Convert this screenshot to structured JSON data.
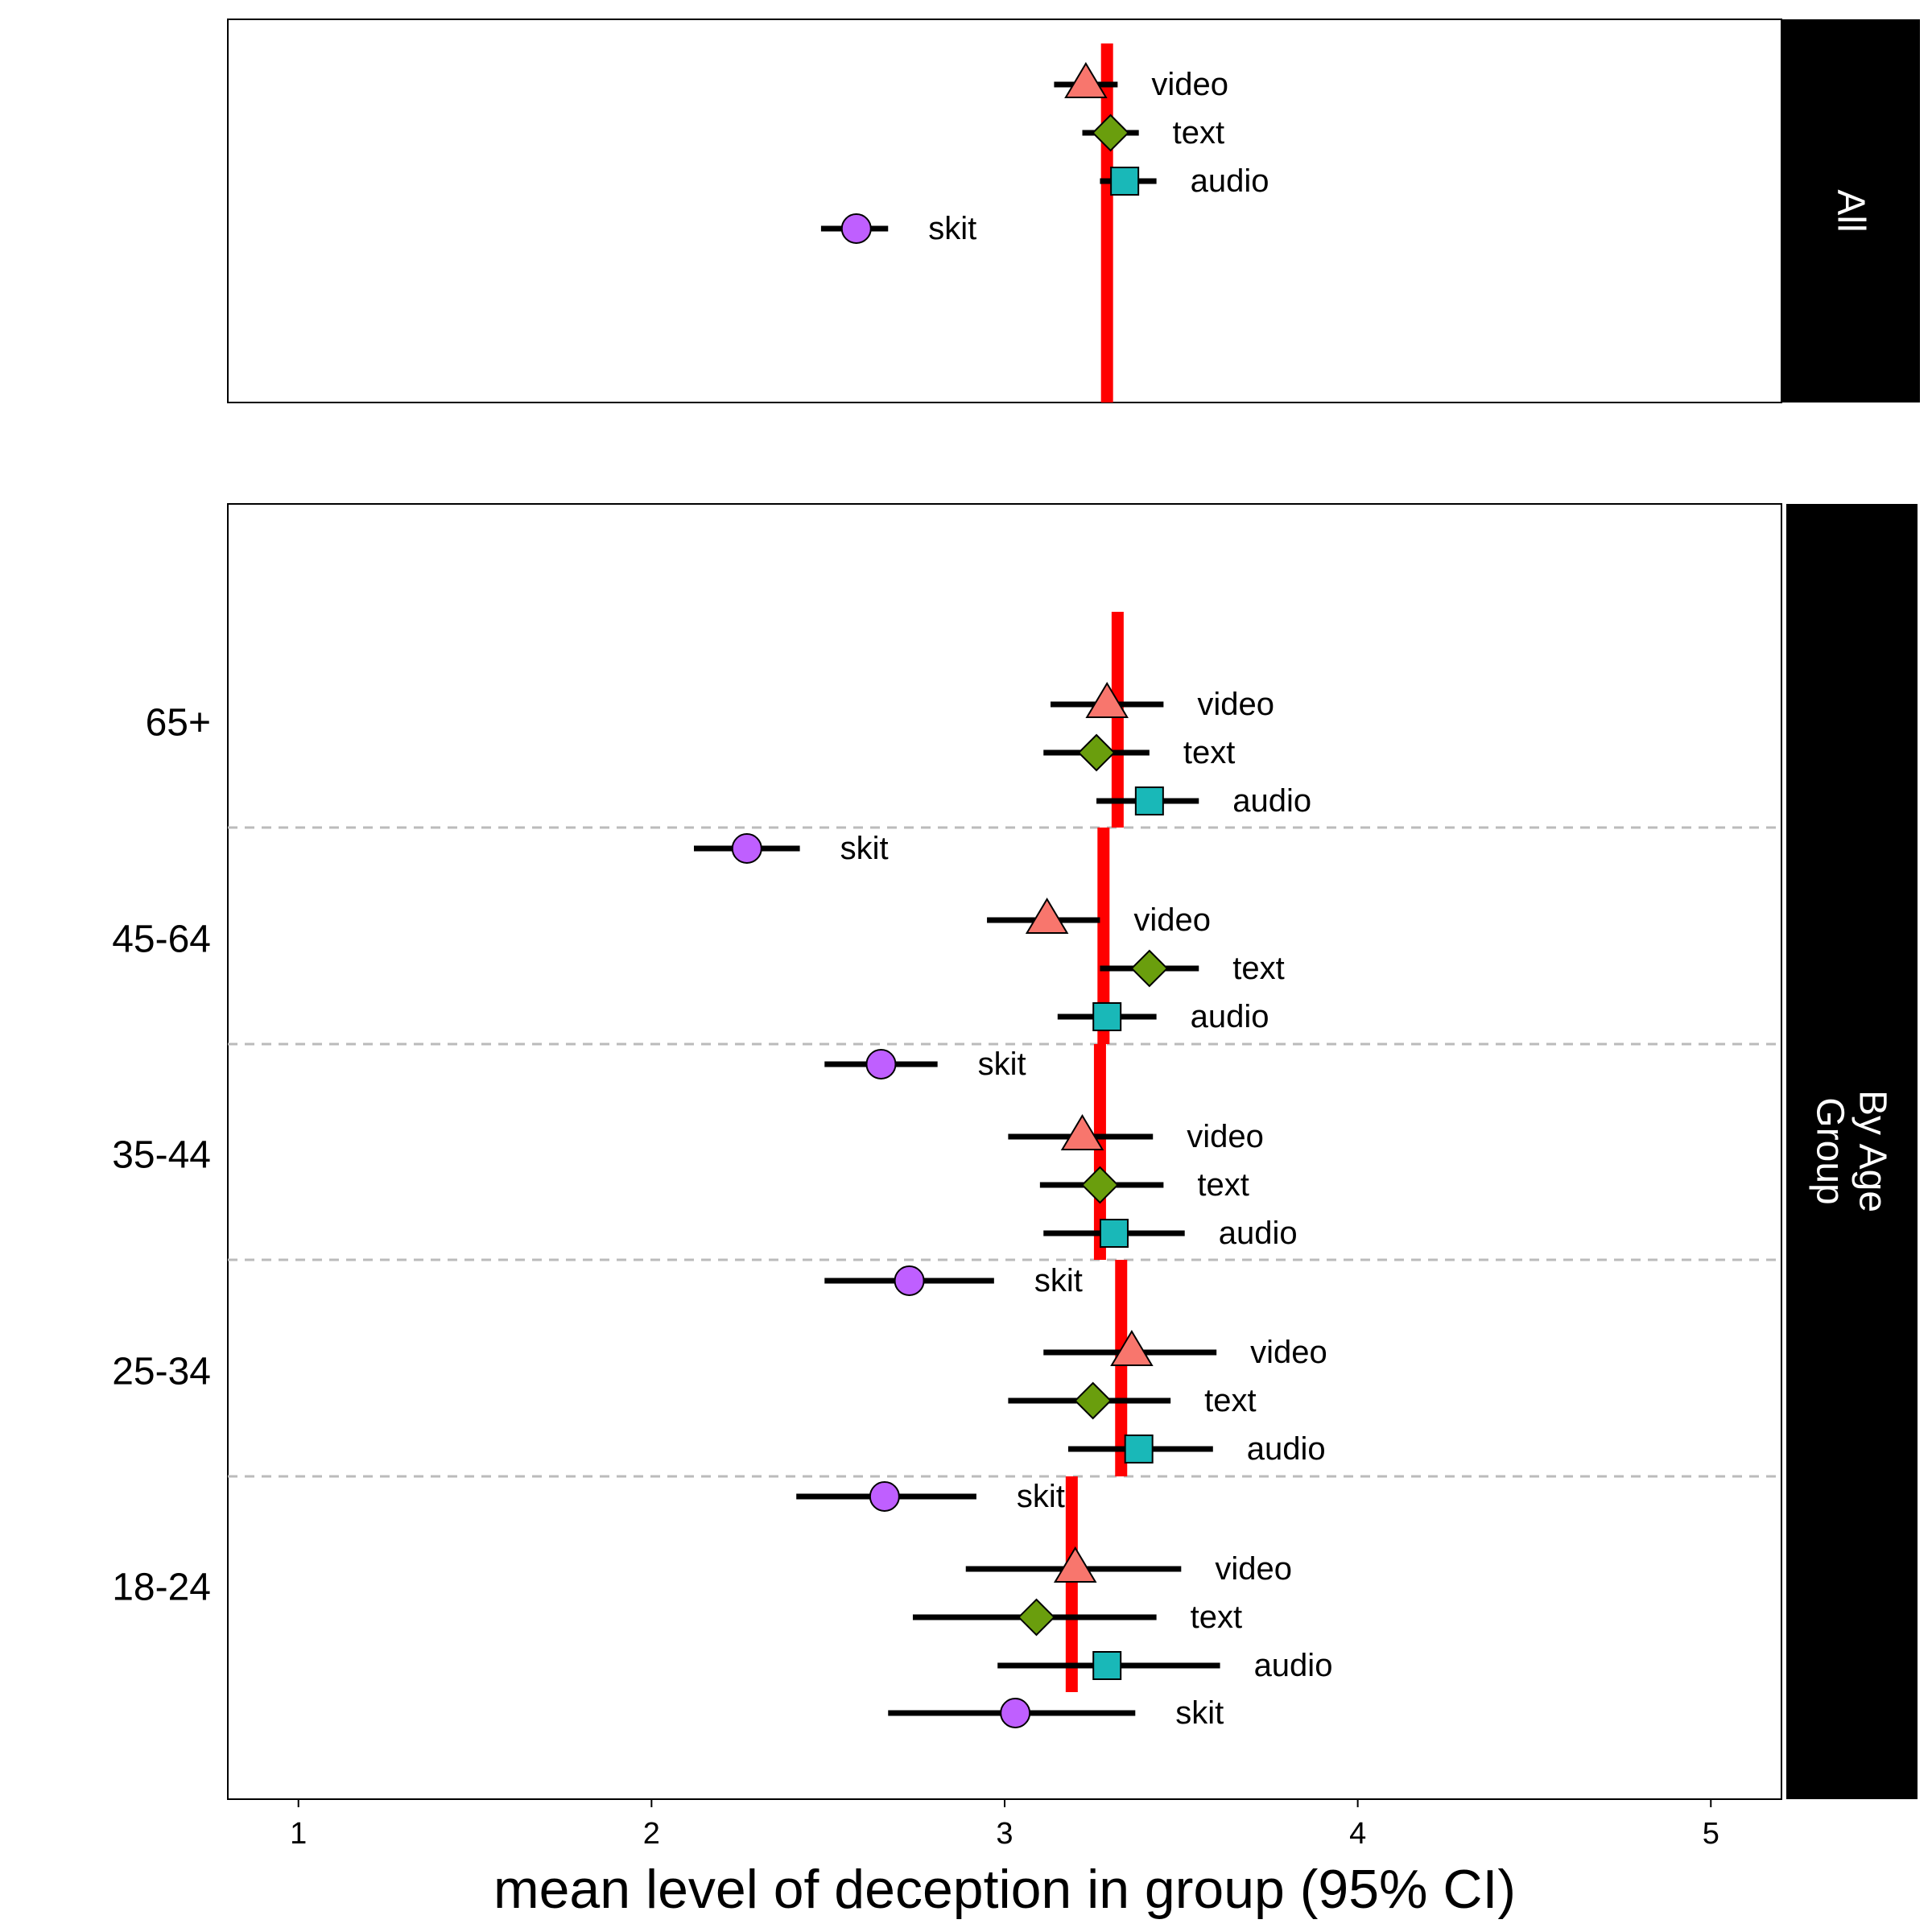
{
  "chart_data": {
    "type": "forest",
    "xlabel": "mean level of deception in group (95% CI)",
    "xlim": [
      0.8,
      5.2
    ],
    "xticks": [
      1,
      2,
      3,
      4,
      5
    ],
    "colors": {
      "video": "#f8766d",
      "text": "#6a9e0d",
      "audio": "#19b8b8",
      "skit": "#bf5fff",
      "mean_line": "#ff0000"
    },
    "markers": {
      "video": "triangle",
      "text": "diamond",
      "audio": "square",
      "skit": "circle"
    },
    "panels": [
      {
        "strip": "All",
        "groups": [
          {
            "label": "",
            "mean": 3.29,
            "points": [
              {
                "name": "video",
                "mean": 3.23,
                "lo": 3.14,
                "hi": 3.32
              },
              {
                "name": "text",
                "mean": 3.3,
                "lo": 3.22,
                "hi": 3.38
              },
              {
                "name": "audio",
                "mean": 3.34,
                "lo": 3.27,
                "hi": 3.43
              },
              {
                "name": "skit",
                "mean": 2.58,
                "lo": 2.48,
                "hi": 2.67
              }
            ]
          }
        ]
      },
      {
        "strip": "By Age Group",
        "groups": [
          {
            "label": "65+",
            "mean": 3.32,
            "points": [
              {
                "name": "video",
                "mean": 3.29,
                "lo": 3.13,
                "hi": 3.45
              },
              {
                "name": "text",
                "mean": 3.26,
                "lo": 3.11,
                "hi": 3.41
              },
              {
                "name": "audio",
                "mean": 3.41,
                "lo": 3.26,
                "hi": 3.55
              },
              {
                "name": "skit",
                "mean": 2.27,
                "lo": 2.12,
                "hi": 2.42
              }
            ]
          },
          {
            "label": "45-64",
            "mean": 3.28,
            "points": [
              {
                "name": "video",
                "mean": 3.12,
                "lo": 2.95,
                "hi": 3.27
              },
              {
                "name": "text",
                "mean": 3.41,
                "lo": 3.27,
                "hi": 3.55
              },
              {
                "name": "audio",
                "mean": 3.29,
                "lo": 3.15,
                "hi": 3.43
              },
              {
                "name": "skit",
                "mean": 2.65,
                "lo": 2.49,
                "hi": 2.81
              }
            ]
          },
          {
            "label": "35-44",
            "mean": 3.27,
            "points": [
              {
                "name": "video",
                "mean": 3.22,
                "lo": 3.01,
                "hi": 3.42
              },
              {
                "name": "text",
                "mean": 3.27,
                "lo": 3.1,
                "hi": 3.45
              },
              {
                "name": "audio",
                "mean": 3.31,
                "lo": 3.11,
                "hi": 3.51
              },
              {
                "name": "skit",
                "mean": 2.73,
                "lo": 2.49,
                "hi": 2.97
              }
            ]
          },
          {
            "label": "25-34",
            "mean": 3.33,
            "points": [
              {
                "name": "video",
                "mean": 3.36,
                "lo": 3.11,
                "hi": 3.6
              },
              {
                "name": "text",
                "mean": 3.25,
                "lo": 3.01,
                "hi": 3.47
              },
              {
                "name": "audio",
                "mean": 3.38,
                "lo": 3.18,
                "hi": 3.59
              },
              {
                "name": "skit",
                "mean": 2.66,
                "lo": 2.41,
                "hi": 2.92
              }
            ]
          },
          {
            "label": "18-24",
            "mean": 3.19,
            "points": [
              {
                "name": "video",
                "mean": 3.2,
                "lo": 2.89,
                "hi": 3.5
              },
              {
                "name": "text",
                "mean": 3.09,
                "lo": 2.74,
                "hi": 3.43
              },
              {
                "name": "audio",
                "mean": 3.29,
                "lo": 2.98,
                "hi": 3.61
              },
              {
                "name": "skit",
                "mean": 3.03,
                "lo": 2.67,
                "hi": 3.37
              }
            ]
          }
        ]
      }
    ]
  }
}
